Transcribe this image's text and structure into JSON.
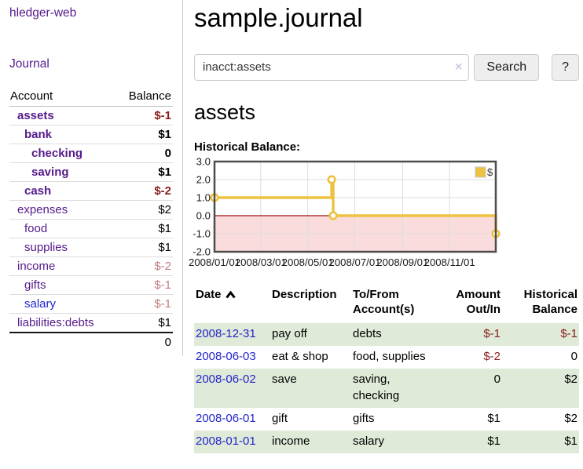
{
  "sidebar": {
    "app_title": "hledger-web",
    "nav": {
      "journal": "Journal"
    },
    "accounts_table": {
      "headers": {
        "account": "Account",
        "balance": "Balance"
      },
      "rows": [
        {
          "name": "assets",
          "level": 0,
          "bold": true,
          "link_color": "purple",
          "balance": "$-1",
          "balance_style": "neg-strong"
        },
        {
          "name": "bank",
          "level": 1,
          "bold": true,
          "link_color": "purple",
          "balance": "$1",
          "balance_style": "strong"
        },
        {
          "name": "checking",
          "level": 2,
          "bold": true,
          "link_color": "purple",
          "balance": "0",
          "balance_style": "strong"
        },
        {
          "name": "saving",
          "level": 2,
          "bold": true,
          "link_color": "purple",
          "balance": "$1",
          "balance_style": "strong"
        },
        {
          "name": "cash",
          "level": 1,
          "bold": true,
          "link_color": "purple",
          "balance": "$-2",
          "balance_style": "neg-strong"
        },
        {
          "name": "expenses",
          "level": 0,
          "bold": false,
          "link_color": "purple",
          "balance": "$2",
          "balance_style": "plain"
        },
        {
          "name": "food",
          "level": 1,
          "bold": false,
          "link_color": "purple",
          "balance": "$1",
          "balance_style": "plain"
        },
        {
          "name": "supplies",
          "level": 1,
          "bold": false,
          "link_color": "purple",
          "balance": "$1",
          "balance_style": "plain"
        },
        {
          "name": "income",
          "level": 0,
          "bold": false,
          "link_color": "purple",
          "balance": "$-2",
          "balance_style": "neg-soft"
        },
        {
          "name": "gifts",
          "level": 1,
          "bold": false,
          "link_color": "purple",
          "balance": "$-1",
          "balance_style": "neg-soft"
        },
        {
          "name": "salary",
          "level": 1,
          "bold": false,
          "link_color": "blue",
          "balance": "$-1",
          "balance_style": "neg-soft"
        },
        {
          "name": "liabilities:debts",
          "level": 0,
          "bold": false,
          "link_color": "purple",
          "balance": "$1",
          "balance_style": "plain"
        }
      ],
      "total": "0"
    }
  },
  "main": {
    "title": "sample.journal",
    "search": {
      "value": "inacct:assets",
      "clear_icon": "×",
      "button_label": "Search",
      "help_button_label": "?"
    },
    "account_heading": "assets",
    "register": {
      "headers": [
        "Date",
        "Description",
        "To/From Account(s)",
        "Amount Out/In",
        "Historical Balance"
      ],
      "sort_icon": "chevron-up",
      "rows": [
        {
          "date": "2008-12-31",
          "description": "pay off",
          "accounts": "debts",
          "amount": "$-1",
          "amount_negative": true,
          "balance": "$-1",
          "balance_negative": true,
          "stripe": true
        },
        {
          "date": "2008-06-03",
          "description": "eat & shop",
          "accounts": "food, supplies",
          "amount": "$-2",
          "amount_negative": true,
          "balance": "0",
          "balance_negative": false,
          "stripe": false
        },
        {
          "date": "2008-06-02",
          "description": "save",
          "accounts": "saving, checking",
          "amount": "0",
          "amount_negative": false,
          "balance": "$2",
          "balance_negative": false,
          "stripe": true
        },
        {
          "date": "2008-06-01",
          "description": "gift",
          "accounts": "gifts",
          "amount": "$1",
          "amount_negative": false,
          "balance": "$2",
          "balance_negative": false,
          "stripe": false
        },
        {
          "date": "2008-01-01",
          "description": "income",
          "accounts": "salary",
          "amount": "$1",
          "amount_negative": false,
          "balance": "$1",
          "balance_negative": false,
          "stripe": true
        }
      ]
    }
  },
  "chart_data": {
    "type": "line",
    "step": true,
    "title": "Historical Balance:",
    "series": [
      {
        "name": "$",
        "color": "#edc240",
        "points": [
          {
            "x": "2008-01-01",
            "y": 1
          },
          {
            "x": "2008-06-01",
            "y": 2
          },
          {
            "x": "2008-06-03",
            "y": 0
          },
          {
            "x": "2008-12-31",
            "y": -1
          }
        ]
      }
    ],
    "x_range": [
      "2008-01-01",
      "2008-12-31"
    ],
    "x_ticks": [
      {
        "date": "2008-01-01",
        "label": "2008/01/01"
      },
      {
        "date": "2008-03-01",
        "label": "2008/03/01"
      },
      {
        "date": "2008-05-01",
        "label": "2008/05/01"
      },
      {
        "date": "2008-07-01",
        "label": "2008/07/01"
      },
      {
        "date": "2008-09-01",
        "label": "2008/09/01"
      },
      {
        "date": "2008-11-01",
        "label": "2008/11/01"
      }
    ],
    "ylim": [
      -2,
      3
    ],
    "y_ticks": [
      3.0,
      2.0,
      1.0,
      0.0,
      -1.0,
      -2.0
    ],
    "grid": true,
    "legend": {
      "position": "top-right",
      "label": "$"
    },
    "colors": {
      "series": "#edc240",
      "negative_region": "#fbdcdc",
      "zero_line": "#9b1010",
      "border": "#4d4d4d",
      "gridline": "#dddddd"
    }
  }
}
